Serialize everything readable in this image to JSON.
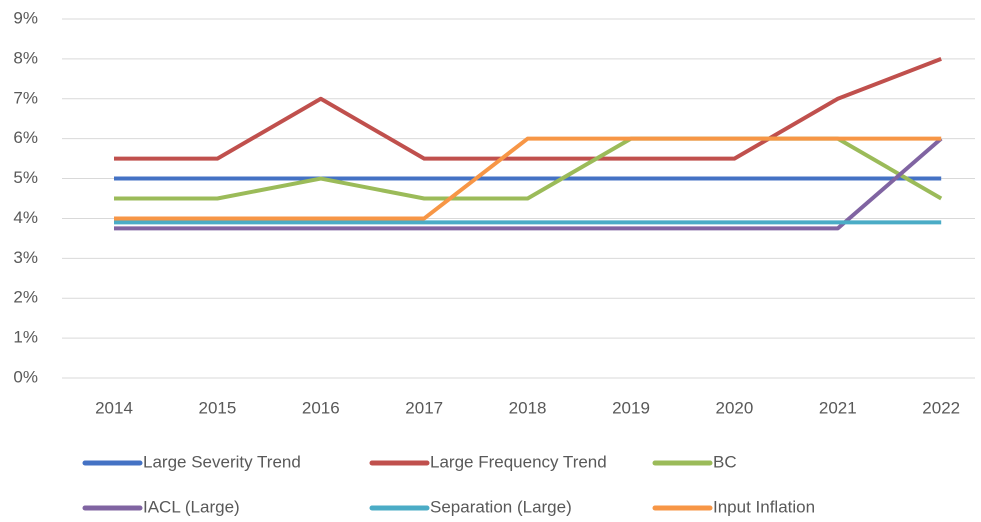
{
  "chart_data": {
    "type": "line",
    "categories": [
      "2014",
      "2015",
      "2016",
      "2017",
      "2018",
      "2019",
      "2020",
      "2021",
      "2022"
    ],
    "series": [
      {
        "name": "Large Severity Trend",
        "color": "#4472c4",
        "values": [
          5,
          5,
          5,
          5,
          5,
          5,
          5,
          5,
          5
        ]
      },
      {
        "name": "Large Frequency Trend",
        "color": "#c0504d",
        "values": [
          5.5,
          5.5,
          7,
          5.5,
          5.5,
          5.5,
          5.5,
          7,
          8
        ]
      },
      {
        "name": "BC",
        "color": "#9bbb59",
        "values": [
          4.5,
          4.5,
          5,
          4.5,
          4.5,
          6,
          6,
          6,
          4.5
        ]
      },
      {
        "name": "IACL (Large)",
        "color": "#8064a2",
        "values": [
          3.75,
          3.75,
          3.75,
          3.75,
          3.75,
          3.75,
          3.75,
          3.75,
          6
        ]
      },
      {
        "name": "Separation (Large)",
        "color": "#4bacc6",
        "values": [
          3.9,
          3.9,
          3.9,
          3.9,
          3.9,
          3.9,
          3.9,
          3.9,
          3.9
        ]
      },
      {
        "name": "Input Inflation",
        "color": "#f79646",
        "values": [
          4,
          4,
          4,
          4,
          6,
          6,
          6,
          6,
          6
        ]
      }
    ],
    "ylim": [
      0,
      9
    ],
    "yticks": [
      {
        "value": 0,
        "label": "0%"
      },
      {
        "value": 1,
        "label": "1%"
      },
      {
        "value": 2,
        "label": "2%"
      },
      {
        "value": 3,
        "label": "3%"
      },
      {
        "value": 4,
        "label": "4%"
      },
      {
        "value": 5,
        "label": "5%"
      },
      {
        "value": 6,
        "label": "6%"
      },
      {
        "value": 7,
        "label": "7%"
      },
      {
        "value": 8,
        "label": "8%"
      },
      {
        "value": 9,
        "label": "9%"
      }
    ],
    "grid": true,
    "legend": "bottom"
  }
}
